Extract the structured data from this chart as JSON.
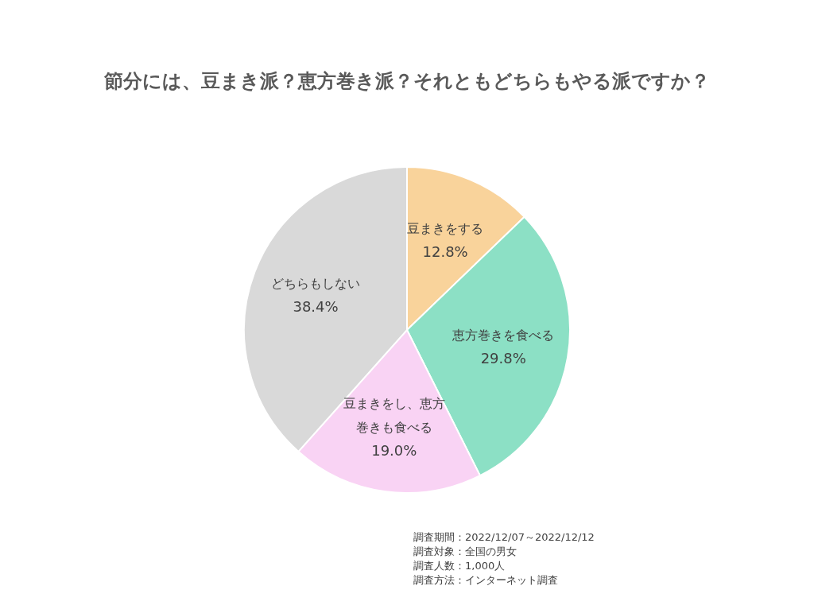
{
  "chart_data": {
    "type": "pie",
    "title": "節分には、豆まき派？恵方巻き派？それともどちらもやる派ですか？",
    "categories": [
      "豆まきをする",
      "恵方巻きを食べる",
      "豆まきをし、恵方巻きも食べる",
      "どちらもしない"
    ],
    "values": [
      12.8,
      29.8,
      19.0,
      38.4
    ],
    "value_labels": [
      "12.8%",
      "29.8%",
      "19.0%",
      "38.4%"
    ],
    "colors": [
      "#f9d39b",
      "#8ce0c5",
      "#f9d3f4",
      "#d9d9d9"
    ],
    "annotations": [
      "調査期間：2022/12/07～2022/12/12",
      "調査対象：全国の男女",
      "調査人数：1,000人",
      "調査方法：インターネット調査"
    ]
  }
}
